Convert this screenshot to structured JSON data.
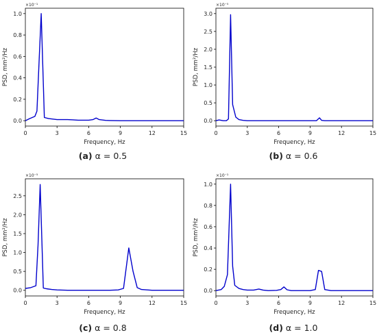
{
  "chart_data": [
    {
      "type": "line",
      "panel": "(a)",
      "caption_label": "(a)",
      "caption_text": "α = 0.5",
      "xlabel": "Frequency, Hz",
      "ylabel": "PSD, mm²/Hz",
      "scale_note": "×10⁻¹",
      "xlim": [
        0,
        15
      ],
      "ylim": [
        -0.05,
        1.05
      ],
      "x_ticks": [
        0,
        3,
        6,
        9,
        12,
        15
      ],
      "y_ticks": [
        0.0,
        0.2,
        0.4,
        0.6,
        0.8,
        1.0
      ],
      "y_tick_labels": [
        "0.0",
        "0.2",
        "0.4",
        "0.6",
        "0.8",
        "1.0"
      ],
      "line_color": "#0000cc",
      "series": [
        {
          "x": [
            0,
            0.4,
            0.9,
            1.1,
            1.3,
            1.5,
            1.8,
            2.2,
            2.6,
            3.0,
            3.5,
            4.0,
            4.5,
            5.0,
            6.0,
            6.4,
            6.7,
            7.0,
            7.6,
            8.0,
            9.0,
            10.0,
            11.0,
            12.0,
            13.0,
            14.0,
            15.0
          ],
          "y": [
            0.0,
            0.02,
            0.04,
            0.09,
            0.55,
            1.0,
            0.03,
            0.02,
            0.015,
            0.01,
            0.01,
            0.01,
            0.008,
            0.005,
            0.005,
            0.01,
            0.025,
            0.01,
            0.003,
            0.002,
            0.0,
            0.0,
            0.0,
            0.0,
            0.0,
            0.0,
            0.0
          ]
        }
      ]
    },
    {
      "type": "line",
      "panel": "(b)",
      "caption_label": "(b)",
      "caption_text": "α = 0.6",
      "xlabel": "Frequency, Hz",
      "ylabel": "PSD, mm²/Hz",
      "scale_note": "×10⁻⁵",
      "xlim": [
        0,
        15
      ],
      "ylim": [
        -0.15,
        3.15
      ],
      "x_ticks": [
        0,
        3,
        6,
        9,
        12,
        15
      ],
      "y_ticks": [
        0.0,
        0.5,
        1.0,
        1.5,
        2.0,
        2.5,
        3.0
      ],
      "y_tick_labels": [
        "0.0",
        "0.5",
        "1.0",
        "1.5",
        "2.0",
        "2.5",
        "3.0"
      ],
      "line_color": "#0000cc",
      "series": [
        {
          "x": [
            0,
            0.3,
            0.7,
            1.0,
            1.2,
            1.4,
            1.6,
            1.9,
            2.2,
            2.6,
            3.0,
            4.0,
            5.0,
            6.0,
            7.0,
            8.0,
            9.0,
            9.6,
            9.9,
            10.1,
            10.4,
            11.0,
            12.0,
            13.0,
            14.0,
            15.0
          ],
          "y": [
            0.0,
            0.02,
            0.0,
            0.0,
            0.05,
            2.97,
            0.45,
            0.1,
            0.03,
            0.01,
            0.0,
            0.0,
            0.0,
            0.0,
            0.0,
            0.0,
            0.0,
            0.0,
            0.08,
            0.01,
            0.0,
            0.0,
            0.0,
            0.0,
            0.0,
            0.0
          ]
        }
      ]
    },
    {
      "type": "line",
      "panel": "(c)",
      "caption_label": "(c)",
      "caption_text": "α = 0.8",
      "xlabel": "Frequency, Hz",
      "ylabel": "PSD, mm²/Hz",
      "scale_note": "×10⁻⁵",
      "xlim": [
        0,
        15
      ],
      "ylim": [
        -0.15,
        2.95
      ],
      "x_ticks": [
        0,
        3,
        6,
        9,
        12,
        15
      ],
      "y_ticks": [
        0.0,
        0.5,
        1.0,
        1.5,
        2.0,
        2.5
      ],
      "y_tick_labels": [
        "0.0",
        "0.5",
        "1.0",
        "1.5",
        "2.0",
        "2.5"
      ],
      "line_color": "#0000cc",
      "series": [
        {
          "x": [
            0,
            0.5,
            1.0,
            1.2,
            1.4,
            1.7,
            2.0,
            2.5,
            3.0,
            4.0,
            5.0,
            6.0,
            7.0,
            8.0,
            8.8,
            9.3,
            9.8,
            10.2,
            10.6,
            11.0,
            12.0,
            13.0,
            14.0,
            15.0
          ],
          "y": [
            0.05,
            0.07,
            0.12,
            1.2,
            2.8,
            0.06,
            0.04,
            0.02,
            0.01,
            0.0,
            0.0,
            0.0,
            0.0,
            0.0,
            0.01,
            0.05,
            1.12,
            0.5,
            0.07,
            0.02,
            0.0,
            0.0,
            0.0,
            0.0
          ]
        }
      ]
    },
    {
      "type": "line",
      "panel": "(d)",
      "caption_label": "(d)",
      "caption_text": "α = 1.0",
      "xlabel": "Frequency, Hz",
      "ylabel": "PSD, mm²/Hz",
      "scale_note": "×10⁻¹",
      "xlim": [
        0,
        15
      ],
      "ylim": [
        -0.05,
        1.05
      ],
      "x_ticks": [
        0,
        3,
        6,
        9,
        12,
        15
      ],
      "y_ticks": [
        0.0,
        0.2,
        0.4,
        0.6,
        0.8,
        1.0
      ],
      "y_tick_labels": [
        "0.0",
        "0.2",
        "0.4",
        "0.6",
        "0.8",
        "1.0"
      ],
      "line_color": "#0000cc",
      "series": [
        {
          "x": [
            0,
            0.5,
            0.8,
            1.1,
            1.4,
            1.6,
            1.8,
            2.2,
            2.6,
            3.0,
            3.6,
            4.1,
            4.5,
            5.0,
            5.8,
            6.2,
            6.5,
            6.8,
            7.2,
            8.0,
            9.0,
            9.5,
            9.8,
            10.1,
            10.4,
            11.0,
            12.0,
            13.0,
            14.0,
            15.0
          ],
          "y": [
            0.0,
            0.01,
            0.04,
            0.15,
            1.0,
            0.23,
            0.05,
            0.02,
            0.01,
            0.005,
            0.005,
            0.015,
            0.005,
            0.0,
            0.003,
            0.01,
            0.035,
            0.008,
            0.0,
            0.0,
            0.0,
            0.01,
            0.19,
            0.18,
            0.01,
            0.0,
            0.0,
            0.0,
            0.0,
            0.0
          ]
        }
      ]
    }
  ]
}
